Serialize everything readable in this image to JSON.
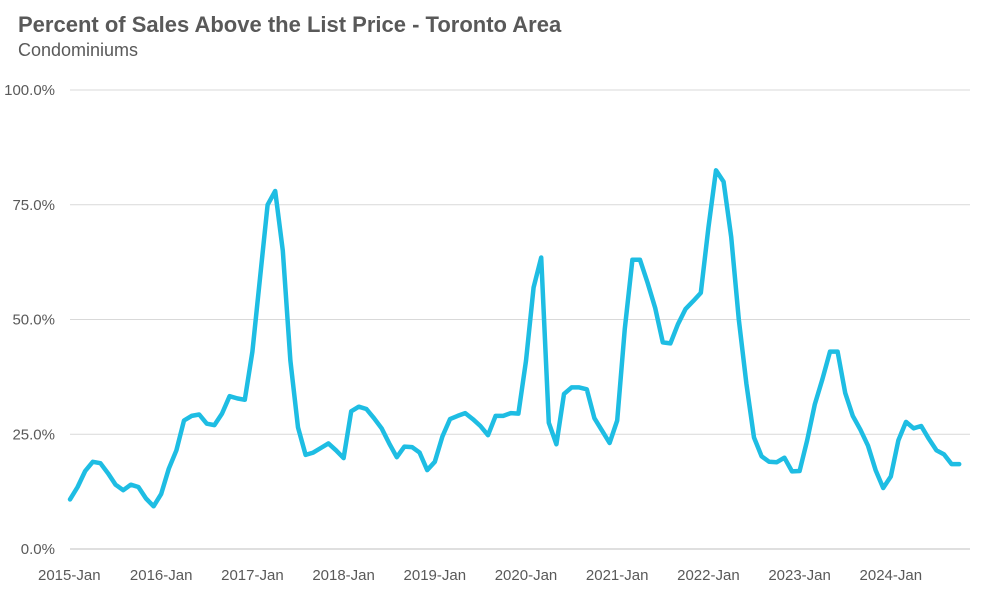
{
  "chart_data": {
    "type": "line",
    "title": "Percent of Sales Above the List Price - Toronto Area",
    "subtitle": "Condominiums",
    "xlabel": "",
    "ylabel": "",
    "ylim": [
      0,
      100
    ],
    "yticks": [
      "0.0%",
      "25.0%",
      "50.0%",
      "75.0%",
      "100.0%"
    ],
    "ytick_values": [
      0,
      25,
      50,
      75,
      100
    ],
    "xticks": [
      "2015-Jan",
      "2016-Jan",
      "2017-Jan",
      "2018-Jan",
      "2019-Jan",
      "2020-Jan",
      "2021-Jan",
      "2022-Jan",
      "2023-Jan",
      "2024-Jan"
    ],
    "grid": true,
    "legend": "none",
    "series_color": "#1ebde3",
    "x_start": "2015-01",
    "series": [
      {
        "values": [
          10.8,
          13.5,
          17.0,
          19.0,
          18.7,
          16.5,
          14.0,
          12.8,
          14.0,
          13.5,
          11.0,
          9.3,
          12.0,
          17.5,
          21.5,
          28.0,
          29.0,
          29.3,
          27.3,
          27.0,
          29.5,
          33.3,
          32.8,
          32.5,
          43.0,
          59.0,
          75.0,
          78.0,
          65.0,
          41.0,
          26.5,
          20.5,
          21.0,
          22.0,
          23.0,
          21.5,
          19.8,
          30.0,
          31.0,
          30.5,
          28.5,
          26.3,
          23.0,
          20.0,
          22.3,
          22.2,
          21.0,
          17.2,
          19.0,
          24.5,
          28.3,
          29.0,
          29.6,
          28.3,
          26.8,
          24.8,
          29.0,
          29.0,
          29.6,
          29.5,
          41.0,
          57.0,
          63.5,
          27.5,
          22.8,
          33.8,
          35.2,
          35.2,
          34.8,
          28.5,
          25.8,
          23.1,
          28.0,
          48.0,
          63.0,
          63.0,
          58.0,
          52.5,
          45.0,
          44.8,
          49.0,
          52.3,
          54.0,
          55.8,
          70.0,
          82.5,
          80.0,
          68.0,
          50.0,
          36.0,
          24.3,
          20.2,
          19.0,
          18.9,
          19.9,
          16.9,
          17.0,
          23.7,
          31.5,
          37.0,
          43.0,
          43.0,
          34.0,
          29.0,
          26.0,
          22.5,
          17.2,
          13.3,
          15.8,
          23.7,
          27.7,
          26.3,
          26.8,
          24.0,
          21.5,
          20.6,
          18.5,
          18.5
        ]
      }
    ]
  }
}
